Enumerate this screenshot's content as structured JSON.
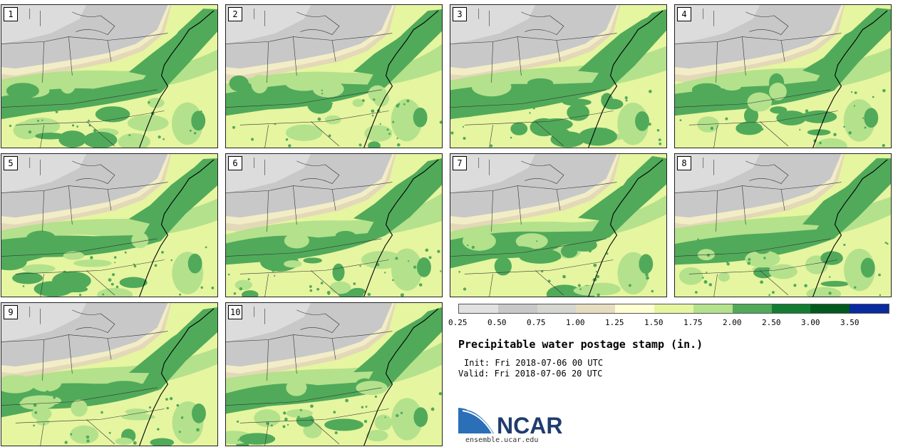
{
  "figure": {
    "title": "Precipitable water postage stamp (in.)",
    "init": "Init: Fri 2018-07-06 00 UTC",
    "valid": "Valid: Fri 2018-07-06 20 UTC",
    "logo_text": "NCAR",
    "url": "ensemble.ucar.edu"
  },
  "members": [
    "1",
    "2",
    "3",
    "4",
    "5",
    "6",
    "7",
    "8",
    "9",
    "10"
  ],
  "legend": {
    "ticks": [
      "0.25",
      "0.50",
      "0.75",
      "1.00",
      "1.25",
      "1.50",
      "1.75",
      "2.00",
      "2.50",
      "3.00",
      "3.50"
    ],
    "colors": [
      "#e1e1e1",
      "#c8c8c8",
      "#d6d6d0",
      "#e6dcc0",
      "#ffffd2",
      "#e6f5a0",
      "#b4e18c",
      "#50aa5a",
      "#147d32",
      "#005a1e",
      "#0a2aa0"
    ]
  },
  "map_colors": {
    "dry": "#c8c8c8",
    "very_dry": "#dcdcdc",
    "tan": "#e3d8b8",
    "pale": "#fcfcd0",
    "yellow_green": "#e6f5a0",
    "light_green": "#b4e18c",
    "green": "#50aa5a",
    "dark_green": "#147d32",
    "border": "#333333"
  }
}
